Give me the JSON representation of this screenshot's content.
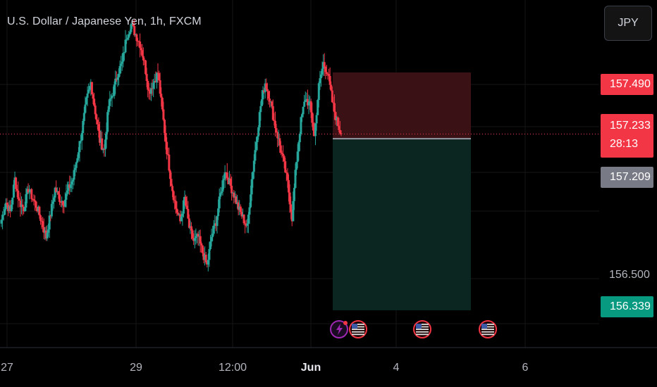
{
  "header": {
    "title": "U.S. Dollar / Japanese Yen, 1h, FXCM",
    "currency_button": "JPY"
  },
  "price_axis": {
    "stop_loss_price": "157.490",
    "last_price": "157.233",
    "countdown": "28:13",
    "entry_price": "157.209",
    "tick_156_5": "156.500",
    "take_profit_price": "156.339"
  },
  "time_axis": {
    "labels": [
      {
        "text": "27",
        "bold": false
      },
      {
        "text": "29",
        "bold": false
      },
      {
        "text": "12:00",
        "bold": false
      },
      {
        "text": "Jun",
        "bold": true
      },
      {
        "text": "4",
        "bold": false
      },
      {
        "text": "6",
        "bold": false
      }
    ]
  },
  "colors": {
    "up": "#26a69a",
    "down": "#f23645",
    "background": "#000000",
    "stop_zone": "#3a1114",
    "target_zone": "#0b2520",
    "entry_line": "#9598a1",
    "take_profit_tag": "#089981",
    "entry_tag": "#787b86"
  },
  "event_icons": [
    "lightning-icon",
    "us-flag-icon",
    "us-flag-icon",
    "us-flag-icon"
  ],
  "chart_data": {
    "type": "candlestick",
    "title": "U.S. Dollar / Japanese Yen, 1h, FXCM",
    "symbol": "USDJPY",
    "interval": "1h",
    "source": "FXCM",
    "y_unit": "JPY",
    "ylim": [
      156.1,
      157.85
    ],
    "x_ticks": [
      "27",
      "29",
      "12:00",
      "Jun",
      "4",
      "6"
    ],
    "y_ticks_shown": [
      "156.500"
    ],
    "last_price": 157.233,
    "countdown": "28:13",
    "grid": true,
    "series": [
      {
        "approximate_close_path": [
          156.79,
          156.88,
          156.83,
          157.0,
          156.88,
          156.85,
          156.95,
          156.9,
          156.85,
          156.78,
          156.7,
          156.82,
          156.95,
          156.9,
          156.88,
          156.95,
          157.0,
          157.12,
          157.25,
          157.4,
          157.5,
          157.35,
          157.2,
          157.15,
          157.38,
          157.45,
          157.55,
          157.6,
          157.74,
          157.8,
          157.75,
          157.7,
          157.6,
          157.45,
          157.5,
          157.55,
          157.35,
          157.15,
          156.98,
          156.85,
          156.78,
          156.9,
          156.75,
          156.68,
          156.7,
          156.62,
          156.55,
          156.7,
          156.78,
          156.92,
          157.05,
          156.98,
          156.92,
          156.85,
          156.8,
          156.75,
          157.0,
          157.2,
          157.38,
          157.5,
          157.42,
          157.3,
          157.2,
          157.1,
          156.98,
          156.8,
          157.1,
          157.3,
          157.42,
          157.38,
          157.22,
          157.48,
          157.6,
          157.55,
          157.4,
          157.3,
          157.233
        ]
      }
    ],
    "position": {
      "type": "short",
      "entry": 157.209,
      "stop_loss": 157.49,
      "take_profit": 156.339
    }
  }
}
